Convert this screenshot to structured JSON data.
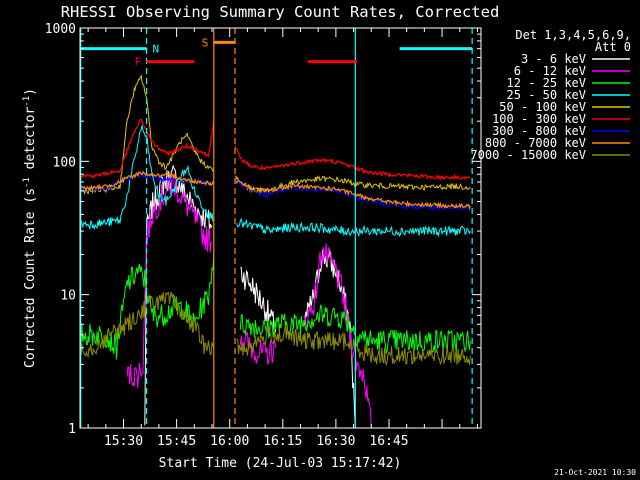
{
  "chart_data": {
    "type": "line",
    "title": "RHESSI Observing Summary Count Rates, Corrected",
    "xlabel": "Start Time (24-Jul-03 15:17:42)",
    "ylabel": "Corrected Count Rate (s",
    "ylabel_exp1": "-1",
    "ylabel_mid": " detector",
    "ylabel_exp2": "-1",
    "ylabel_end": ")",
    "footer_stamp": "21-Oct-2021 10:30",
    "y_scale": "log",
    "ylim": [
      1,
      1000
    ],
    "xlim_min": [
      17.7,
      131
    ],
    "x_unit": "minutes after 15:00 UT",
    "y_ticks": [
      {
        "value": 1,
        "label": "1"
      },
      {
        "value": 10,
        "label": "10"
      },
      {
        "value": 100,
        "label": "100"
      },
      {
        "value": 1000,
        "label": "1000"
      }
    ],
    "x_ticks": [
      {
        "value": 30,
        "label": "15:30"
      },
      {
        "value": 45,
        "label": "15:45"
      },
      {
        "value": 60,
        "label": "16:00"
      },
      {
        "value": 75,
        "label": "16:15"
      },
      {
        "value": 90,
        "label": "16:30"
      },
      {
        "value": 105,
        "label": "16:45"
      }
    ],
    "legend_header": [
      "Det 1,3,4,5,6,9,",
      "Att 0"
    ],
    "legend_position": "top-right",
    "markers": [
      {
        "label": "N",
        "color": "#00ffff",
        "start": 18,
        "end": 36.5,
        "level": 700,
        "kind": "night"
      },
      {
        "label": "",
        "color": "#00ffff",
        "start": 108,
        "end": 128.5,
        "level": 700,
        "kind": "night"
      },
      {
        "label": "F",
        "color": "#ff0000",
        "start": 36.5,
        "end": 50,
        "level": 560,
        "kind": "flare"
      },
      {
        "label": "",
        "color": "#ff0000",
        "start": 82,
        "end": 96,
        "level": 560,
        "kind": "flare"
      },
      {
        "label": "S",
        "color": "#ff8c00",
        "start": 55.5,
        "end": 61.5,
        "level": 780,
        "kind": "saa"
      }
    ],
    "vlines": [
      {
        "x": 17.9,
        "color": "#00ffff",
        "style": "solid"
      },
      {
        "x": 36.5,
        "color": "#00ffff",
        "style": "dashed"
      },
      {
        "x": 95.5,
        "color": "#00ffff",
        "style": "solid"
      },
      {
        "x": 128.5,
        "color": "#00ffff",
        "style": "dashed"
      },
      {
        "x": 55.5,
        "color": "#ff8c00",
        "style": "solid"
      },
      {
        "x": 61.5,
        "color": "#ff8c00",
        "style": "dashed"
      }
    ],
    "series": [
      {
        "name": "3 - 6 keV",
        "color": "#ffffff",
        "lw": 1,
        "jitter": 0.1,
        "points": [
          [
            36,
            1
          ],
          [
            36.5,
            30
          ],
          [
            38,
            45
          ],
          [
            41,
            68
          ],
          [
            44,
            78
          ],
          [
            47,
            60
          ],
          [
            50,
            45
          ],
          [
            53,
            38
          ],
          [
            55,
            33
          ],
          null,
          [
            63,
            15
          ],
          [
            66,
            12
          ],
          [
            70,
            8
          ],
          [
            73,
            5.5
          ],
          null,
          [
            81,
            6
          ],
          [
            84,
            10
          ],
          [
            86,
            20
          ],
          [
            88,
            18
          ],
          [
            90,
            15
          ],
          [
            92,
            10
          ],
          [
            94,
            6
          ],
          [
            95.5,
            1
          ]
        ]
      },
      {
        "name": "6 - 12 keV",
        "color": "#ff00ff",
        "lw": 1,
        "jitter": 0.1,
        "points": [
          [
            31,
            2.5
          ],
          [
            34,
            2.5
          ],
          [
            35.5,
            3
          ],
          [
            36.5,
            26
          ],
          [
            38,
            40
          ],
          [
            41,
            55
          ],
          [
            44,
            70
          ],
          [
            47,
            50
          ],
          [
            50,
            38
          ],
          [
            53,
            27
          ],
          [
            55,
            25
          ],
          null,
          [
            63,
            5
          ],
          [
            66,
            4
          ],
          [
            70,
            3.5
          ],
          [
            73,
            4
          ],
          null,
          [
            81,
            6
          ],
          [
            84,
            9
          ],
          [
            86,
            22
          ],
          [
            88,
            18
          ],
          [
            90,
            15
          ],
          [
            92,
            10
          ],
          [
            94,
            5
          ],
          [
            96,
            3
          ],
          [
            98,
            2.5
          ],
          [
            100,
            1
          ]
        ]
      },
      {
        "name": "12 - 25 keV",
        "color": "#00ff00",
        "lw": 1,
        "jitter": 0.09,
        "points": [
          [
            18,
            5
          ],
          [
            22,
            5
          ],
          [
            25,
            5
          ],
          [
            28,
            4
          ],
          [
            31,
            12
          ],
          [
            34,
            15
          ],
          [
            36,
            13
          ],
          [
            38,
            7
          ],
          [
            41,
            7
          ],
          [
            44,
            8
          ],
          [
            47,
            8
          ],
          [
            50,
            6
          ],
          [
            52,
            8
          ],
          [
            54,
            10
          ],
          [
            55.5,
            20
          ],
          null,
          [
            63,
            6
          ],
          [
            66,
            6
          ],
          [
            70,
            5.5
          ],
          [
            73,
            6
          ],
          [
            76,
            6
          ],
          [
            79,
            6
          ],
          [
            82,
            6.5
          ],
          [
            86,
            7
          ],
          [
            90,
            7
          ],
          [
            93,
            6.5
          ],
          [
            96,
            5
          ],
          [
            100,
            4.5
          ],
          [
            106,
            4.5
          ],
          [
            112,
            4.5
          ],
          [
            118,
            4.5
          ],
          [
            124,
            4.5
          ],
          [
            128,
            4.5
          ]
        ]
      },
      {
        "name": "25 - 50 keV",
        "color": "#00ffff",
        "lw": 1,
        "jitter": 0.035,
        "points": [
          [
            18,
            34
          ],
          [
            22,
            34
          ],
          [
            26,
            35
          ],
          [
            29,
            36
          ],
          [
            31,
            55
          ],
          [
            33,
            100
          ],
          [
            35,
            180
          ],
          [
            36.5,
            150
          ],
          [
            38,
            80
          ],
          [
            40,
            55
          ],
          [
            42,
            50
          ],
          [
            44,
            60
          ],
          [
            46,
            75
          ],
          [
            48,
            90
          ],
          [
            50,
            60
          ],
          [
            52,
            48
          ],
          [
            54,
            40
          ],
          [
            55.5,
            38
          ],
          null,
          [
            62,
            35
          ],
          [
            65,
            33
          ],
          [
            68,
            32
          ],
          [
            71,
            30
          ],
          [
            74,
            31
          ],
          [
            77,
            32
          ],
          [
            80,
            32
          ],
          [
            84,
            32
          ],
          [
            88,
            31
          ],
          [
            92,
            30
          ],
          [
            96,
            30
          ],
          [
            100,
            30
          ],
          [
            105,
            30
          ],
          [
            110,
            30
          ],
          [
            115,
            30
          ],
          [
            120,
            30
          ],
          [
            124,
            30
          ],
          [
            128,
            30
          ]
        ]
      },
      {
        "name": "50 - 100 keV",
        "color": "#e0c400",
        "lw": 1,
        "jitter": 0.02,
        "points": [
          [
            18,
            60
          ],
          [
            22,
            60
          ],
          [
            26,
            62
          ],
          [
            29,
            65
          ],
          [
            31,
            200
          ],
          [
            33,
            340
          ],
          [
            35,
            430
          ],
          [
            36.5,
            300
          ],
          [
            38,
            130
          ],
          [
            40,
            100
          ],
          [
            42,
            90
          ],
          [
            44,
            110
          ],
          [
            46,
            140
          ],
          [
            48,
            155
          ],
          [
            50,
            120
          ],
          [
            52,
            100
          ],
          [
            54,
            90
          ],
          [
            55.5,
            85
          ],
          null,
          [
            61.5,
            72
          ],
          [
            63,
            68
          ],
          [
            66,
            62
          ],
          [
            70,
            60
          ],
          [
            74,
            64
          ],
          [
            78,
            70
          ],
          [
            82,
            72
          ],
          [
            86,
            74
          ],
          [
            90,
            73
          ],
          [
            94,
            70
          ],
          [
            96,
            67
          ],
          [
            100,
            66
          ],
          [
            106,
            65
          ],
          [
            112,
            64
          ],
          [
            118,
            64
          ],
          [
            124,
            65
          ],
          [
            128,
            64
          ]
        ]
      },
      {
        "name": "100 - 300 keV",
        "color": "#ff0000",
        "lw": 1.2,
        "jitter": 0.015,
        "points": [
          [
            18,
            78
          ],
          [
            22,
            78
          ],
          [
            26,
            82
          ],
          [
            29,
            85
          ],
          [
            31,
            120
          ],
          [
            33,
            165
          ],
          [
            35,
            205
          ],
          [
            36.5,
            170
          ],
          [
            38,
            140
          ],
          [
            40,
            125
          ],
          [
            42,
            115
          ],
          [
            44,
            118
          ],
          [
            46,
            125
          ],
          [
            48,
            130
          ],
          [
            50,
            125
          ],
          [
            52,
            118
          ],
          [
            54,
            110
          ],
          [
            55.5,
            200
          ],
          null,
          [
            61.5,
            130
          ],
          [
            63,
            105
          ],
          [
            66,
            92
          ],
          [
            70,
            88
          ],
          [
            74,
            92
          ],
          [
            78,
            96
          ],
          [
            82,
            100
          ],
          [
            86,
            102
          ],
          [
            90,
            99
          ],
          [
            94,
            93
          ],
          [
            96,
            88
          ],
          [
            100,
            82
          ],
          [
            106,
            80
          ],
          [
            112,
            78
          ],
          [
            118,
            76
          ],
          [
            124,
            76
          ],
          [
            128,
            75
          ]
        ]
      },
      {
        "name": "300 - 800 keV",
        "color": "#0000ff",
        "lw": 1,
        "jitter": 0.02,
        "points": [
          [
            18,
            62
          ],
          [
            22,
            62
          ],
          [
            26,
            64
          ],
          [
            29,
            70
          ],
          [
            31,
            75
          ],
          [
            33,
            77
          ],
          [
            35,
            80
          ],
          [
            37,
            78
          ],
          [
            40,
            74
          ],
          [
            44,
            73
          ],
          [
            48,
            70
          ],
          [
            52,
            70
          ],
          [
            55.5,
            68
          ],
          null,
          [
            61.5,
            75
          ],
          [
            63,
            68
          ],
          [
            66,
            60
          ],
          [
            70,
            56
          ],
          [
            74,
            60
          ],
          [
            78,
            64
          ],
          [
            82,
            62
          ],
          [
            86,
            62
          ],
          [
            90,
            60
          ],
          [
            94,
            56
          ],
          [
            98,
            52
          ],
          [
            104,
            48
          ],
          [
            110,
            46
          ],
          [
            118,
            45
          ],
          [
            124,
            45
          ],
          [
            128,
            45
          ]
        ]
      },
      {
        "name": "800 - 7000 keV",
        "color": "#ff8c00",
        "lw": 1.2,
        "jitter": 0.015,
        "points": [
          [
            18,
            63
          ],
          [
            22,
            63
          ],
          [
            26,
            66
          ],
          [
            29,
            70
          ],
          [
            31,
            75
          ],
          [
            33,
            78
          ],
          [
            35,
            82
          ],
          [
            37,
            80
          ],
          [
            40,
            78
          ],
          [
            44,
            78
          ],
          [
            48,
            72
          ],
          [
            52,
            70
          ],
          [
            55.5,
            68
          ],
          null,
          [
            61.5,
            78
          ],
          [
            63,
            70
          ],
          [
            66,
            63
          ],
          [
            70,
            60
          ],
          [
            74,
            62
          ],
          [
            78,
            66
          ],
          [
            82,
            64
          ],
          [
            86,
            63
          ],
          [
            90,
            62
          ],
          [
            94,
            58
          ],
          [
            98,
            54
          ],
          [
            104,
            50
          ],
          [
            110,
            48
          ],
          [
            118,
            47
          ],
          [
            124,
            46
          ],
          [
            128,
            46
          ]
        ]
      },
      {
        "name": "7000 - 15000 keV",
        "color": "#8b8b00",
        "lw": 1,
        "jitter": 0.07,
        "points": [
          [
            18,
            4
          ],
          [
            22,
            4
          ],
          [
            26,
            5
          ],
          [
            29,
            5.5
          ],
          [
            31,
            6
          ],
          [
            34,
            7
          ],
          [
            37,
            8.5
          ],
          [
            40,
            9
          ],
          [
            44,
            9
          ],
          [
            47,
            7
          ],
          [
            50,
            6
          ],
          [
            53,
            4
          ],
          [
            55.5,
            4
          ],
          null,
          [
            62,
            4
          ],
          [
            65,
            4
          ],
          [
            68,
            4.5
          ],
          [
            71,
            5
          ],
          [
            74,
            5
          ],
          [
            77,
            5
          ],
          [
            80,
            4.5
          ],
          [
            84,
            4.5
          ],
          [
            88,
            4.5
          ],
          [
            92,
            4.5
          ],
          [
            96,
            4
          ],
          [
            100,
            3.5
          ],
          [
            106,
            3.5
          ],
          [
            112,
            3.5
          ],
          [
            118,
            3.5
          ],
          [
            124,
            3.5
          ],
          [
            128,
            3.5
          ]
        ]
      }
    ]
  }
}
